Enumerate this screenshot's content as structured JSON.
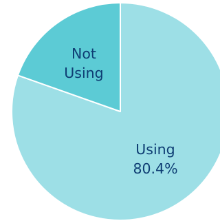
{
  "chart_data": {
    "type": "pie",
    "title": "",
    "slices": [
      {
        "name_lines": [
          "Using"
        ],
        "value_text": "80.4%",
        "value": 80.4,
        "color": "#9ddfe6"
      },
      {
        "name_lines": [
          "Not",
          "Using"
        ],
        "value_text": "",
        "value": 19.6,
        "color": "#5ccbd5"
      }
    ],
    "slice_edge_color": "#ffffff",
    "start_angle_deg": 0,
    "direction": "clockwise"
  }
}
